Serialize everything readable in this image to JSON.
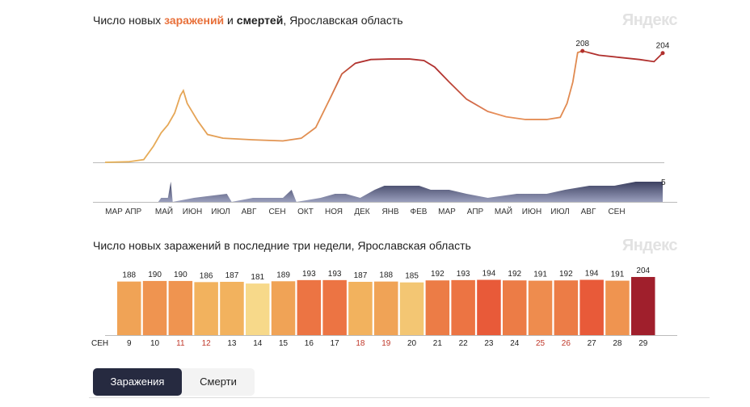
{
  "chart_data": [
    {
      "type": "line",
      "title_parts": [
        "Число новых ",
        "заражений",
        " и ",
        "смертей",
        ", Ярославская область"
      ],
      "brand": "Яндекс",
      "month_labels": [
        "МАР",
        "АПР",
        "МАЙ",
        "ИЮН",
        "ИЮЛ",
        "АВГ",
        "СЕН",
        "ОКТ",
        "НОЯ",
        "ДЕК",
        "ЯНВ",
        "ФЕВ",
        "МАР",
        "АПР",
        "МАЙ",
        "ИЮН",
        "ИЮЛ",
        "АВГ",
        "СЕН"
      ],
      "series": [
        {
          "key": "infections",
          "points": [
            [
              "2020-03-01",
              0
            ],
            [
              "2020-03-25",
              1
            ],
            [
              "2020-04-10",
              5
            ],
            [
              "2020-04-20",
              30
            ],
            [
              "2020-04-28",
              55
            ],
            [
              "2020-05-05",
              70
            ],
            [
              "2020-05-12",
              92
            ],
            [
              "2020-05-18",
              125
            ],
            [
              "2020-05-21",
              134
            ],
            [
              "2020-05-25",
              110
            ],
            [
              "2020-06-05",
              77
            ],
            [
              "2020-06-15",
              52
            ],
            [
              "2020-07-01",
              45
            ],
            [
              "2020-08-01",
              42
            ],
            [
              "2020-09-01",
              40
            ],
            [
              "2020-09-20",
              45
            ],
            [
              "2020-10-05",
              65
            ],
            [
              "2020-10-20",
              120
            ],
            [
              "2020-11-01",
              165
            ],
            [
              "2020-11-15",
              185
            ],
            [
              "2020-12-01",
              192
            ],
            [
              "2020-12-20",
              193
            ],
            [
              "2021-01-10",
              193
            ],
            [
              "2021-01-25",
              190
            ],
            [
              "2021-02-05",
              178
            ],
            [
              "2021-02-20",
              150
            ],
            [
              "2021-03-10",
              118
            ],
            [
              "2021-04-01",
              95
            ],
            [
              "2021-04-20",
              85
            ],
            [
              "2021-05-10",
              80
            ],
            [
              "2021-06-01",
              80
            ],
            [
              "2021-06-15",
              84
            ],
            [
              "2021-06-22",
              110
            ],
            [
              "2021-06-28",
              150
            ],
            [
              "2021-07-03",
              205
            ],
            [
              "2021-07-08",
              208
            ],
            [
              "2021-07-25",
              200
            ],
            [
              "2021-08-15",
              196
            ],
            [
              "2021-09-05",
              192
            ],
            [
              "2021-09-20",
              188
            ],
            [
              "2021-09-29",
              204
            ]
          ],
          "annotations": [
            {
              "date": "2021-07-08",
              "value": 208,
              "label": "208"
            },
            {
              "date": "2021-09-29",
              "value": 204,
              "label": "204"
            }
          ]
        },
        {
          "key": "deaths",
          "points": [
            [
              "2020-03-01",
              0
            ],
            [
              "2020-04-25",
              0
            ],
            [
              "2020-04-28",
              1
            ],
            [
              "2020-05-05",
              1
            ],
            [
              "2020-05-08",
              5
            ],
            [
              "2020-05-10",
              0
            ],
            [
              "2020-06-01",
              1
            ],
            [
              "2020-07-05",
              2
            ],
            [
              "2020-07-10",
              0
            ],
            [
              "2020-08-01",
              1
            ],
            [
              "2020-09-01",
              1
            ],
            [
              "2020-09-10",
              3
            ],
            [
              "2020-09-15",
              0
            ],
            [
              "2020-10-10",
              1
            ],
            [
              "2020-10-25",
              2
            ],
            [
              "2020-11-05",
              2
            ],
            [
              "2020-11-20",
              1
            ],
            [
              "2020-12-05",
              3
            ],
            [
              "2020-12-15",
              4
            ],
            [
              "2021-01-01",
              4
            ],
            [
              "2021-01-20",
              4
            ],
            [
              "2021-02-01",
              3
            ],
            [
              "2021-02-20",
              3
            ],
            [
              "2021-03-10",
              2
            ],
            [
              "2021-04-01",
              1
            ],
            [
              "2021-05-01",
              2
            ],
            [
              "2021-06-01",
              2
            ],
            [
              "2021-06-20",
              3
            ],
            [
              "2021-07-15",
              4
            ],
            [
              "2021-08-10",
              4
            ],
            [
              "2021-09-01",
              5
            ],
            [
              "2021-09-29",
              5
            ]
          ],
          "annotations": [
            {
              "date": "2021-09-29",
              "value": 5,
              "label": "5"
            }
          ]
        }
      ],
      "colors": {
        "infections_low": "#e8b45a",
        "infections_high": "#b0302e",
        "deaths": "#4a4e6e"
      }
    },
    {
      "type": "bar",
      "title": "Число новых заражений в последние три недели, Ярославская область",
      "brand": "Яндекс",
      "month_label": "СЕН",
      "categories": [
        "9",
        "10",
        "11",
        "12",
        "13",
        "14",
        "15",
        "16",
        "17",
        "18",
        "19",
        "20",
        "21",
        "22",
        "23",
        "24",
        "25",
        "26",
        "27",
        "28",
        "29"
      ],
      "values": [
        188,
        190,
        190,
        186,
        187,
        181,
        189,
        193,
        193,
        187,
        188,
        185,
        192,
        193,
        194,
        192,
        191,
        192,
        194,
        191,
        204
      ],
      "weekend_days": [
        "11",
        "12",
        "18",
        "19",
        "25",
        "26"
      ],
      "colors": [
        "#f0a356",
        "#ef9450",
        "#ef9450",
        "#f2b25e",
        "#f2b25e",
        "#f7d98a",
        "#f0a356",
        "#ec7443",
        "#ec7443",
        "#f2b25e",
        "#f0a356",
        "#f3c673",
        "#ec7c46",
        "#ec7443",
        "#e85a39",
        "#ec7c46",
        "#ee8c4e",
        "#ec7c46",
        "#e85a39",
        "#ef9450",
        "#a01f2c"
      ]
    }
  ],
  "tabs": [
    {
      "label": "Заражения",
      "active": true
    },
    {
      "label": "Смерти",
      "active": false
    }
  ]
}
